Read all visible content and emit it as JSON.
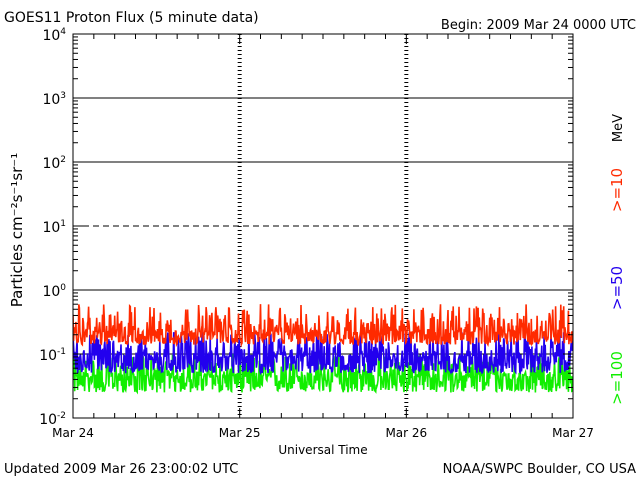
{
  "chart_data": {
    "type": "line",
    "title": "GOES11 Proton Flux (5 minute data)",
    "begin_label": "Begin: 2009 Mar 24 0000 UTC",
    "xlabel": "Universal Time",
    "ylabel": "Particles cm⁻²s⁻¹sr⁻¹",
    "unit_label": "MeV",
    "yscale": "log",
    "ylim": [
      0.01,
      10000
    ],
    "xlim": [
      0,
      3
    ],
    "x_tick_labels": [
      "Mar 24",
      "Mar 25",
      "Mar 26",
      "Mar 27"
    ],
    "y_tick_labels": [
      {
        "value": 0.01,
        "base": "10",
        "exp": "-2"
      },
      {
        "value": 0.1,
        "base": "10",
        "exp": "-1"
      },
      {
        "value": 1,
        "base": "10",
        "exp": "0"
      },
      {
        "value": 10,
        "base": "10",
        "exp": "1"
      },
      {
        "value": 100,
        "base": "10",
        "exp": "2"
      },
      {
        "value": 1000,
        "base": "10",
        "exp": "3"
      },
      {
        "value": 10000,
        "base": "10",
        "exp": "4"
      }
    ],
    "reference_lines": [
      {
        "value": 1000,
        "style": "solid"
      },
      {
        "value": 100,
        "style": "solid"
      },
      {
        "value": 10,
        "style": "dashed"
      },
      {
        "value": 1,
        "style": "solid"
      },
      {
        "value": 0.1,
        "style": "solid"
      }
    ],
    "series": [
      {
        "name": ">=10",
        "color": "#ff2a00",
        "median": 0.22,
        "low": 0.14,
        "high": 0.6
      },
      {
        "name": ">=50",
        "color": "#2200ee",
        "median": 0.09,
        "low": 0.05,
        "high": 0.22
      },
      {
        "name": ">=100",
        "color": "#11ee00",
        "median": 0.045,
        "low": 0.025,
        "high": 0.1
      }
    ]
  },
  "footer": {
    "updated": "Updated 2009 Mar 26 23:00:02 UTC",
    "credit": "NOAA/SWPC Boulder, CO USA"
  }
}
